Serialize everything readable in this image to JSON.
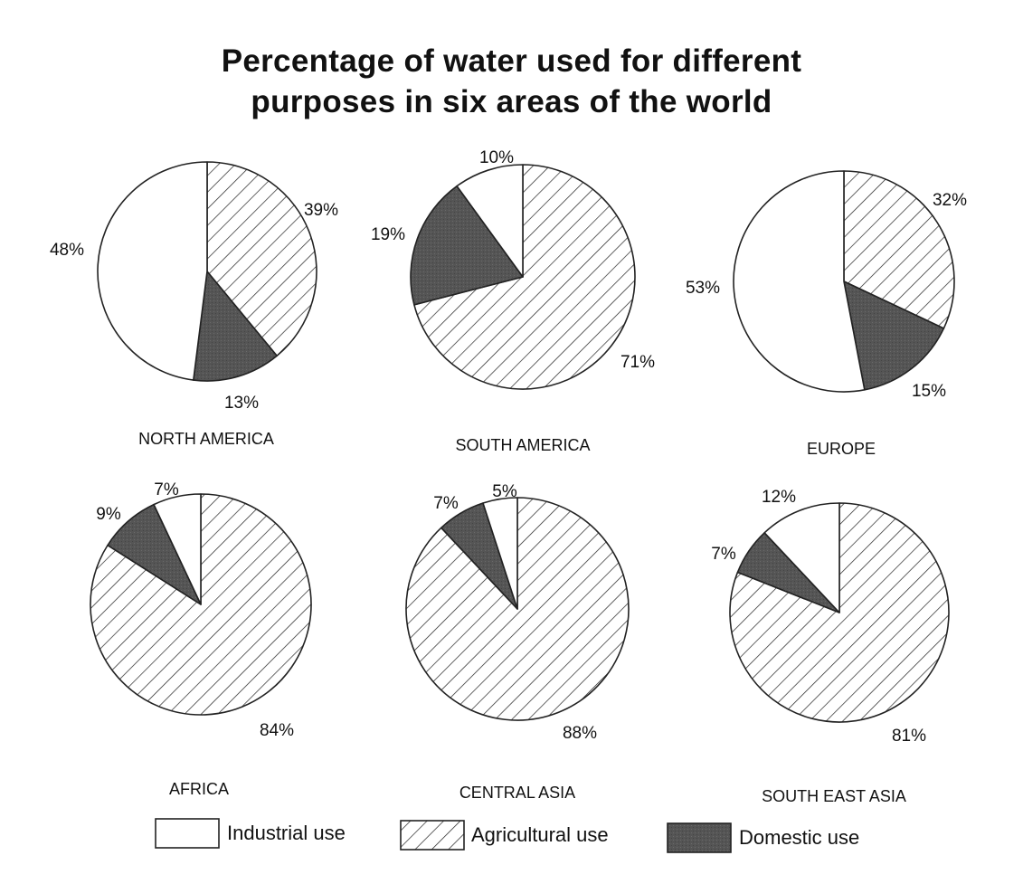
{
  "chart_title_line1": "Percentage of water used for different",
  "chart_title_line2": "purposes in six areas of the world",
  "chart_data": {
    "type": "pie",
    "title": "Percentage of water used for different purposes in six areas of the world",
    "categories": [
      "Industrial use",
      "Agricultural use",
      "Domestic use"
    ],
    "category_colors": [
      "#ffffff",
      "hatched",
      "#555555"
    ],
    "pies": [
      {
        "name": "NORTH AMERICA",
        "values": {
          "Industrial use": 48,
          "Agricultural use": 39,
          "Domestic use": 13
        },
        "labels": {
          "Industrial use": "48%",
          "Agricultural use": "39%",
          "Domestic use": "13%"
        }
      },
      {
        "name": "SOUTH AMERICA",
        "values": {
          "Industrial use": 10,
          "Agricultural use": 71,
          "Domestic use": 19
        },
        "labels": {
          "Industrial use": "10%",
          "Agricultural use": "71%",
          "Domestic use": "19%"
        }
      },
      {
        "name": "EUROPE",
        "values": {
          "Industrial use": 53,
          "Agricultural use": 32,
          "Domestic use": 15
        },
        "labels": {
          "Industrial use": "53%",
          "Agricultural use": "32%",
          "Domestic use": "15%"
        }
      },
      {
        "name": "AFRICA",
        "values": {
          "Industrial use": 7,
          "Agricultural use": 84,
          "Domestic use": 9
        },
        "labels": {
          "Industrial use": "7%",
          "Agricultural use": "84%",
          "Domestic use": "9%"
        }
      },
      {
        "name": "CENTRAL ASIA",
        "values": {
          "Industrial use": 5,
          "Agricultural use": 88,
          "Domestic use": 7
        },
        "labels": {
          "Industrial use": "5%",
          "Agricultural use": "88%",
          "Domestic use": "7%"
        }
      },
      {
        "name": "SOUTH EAST ASIA",
        "values": {
          "Industrial use": 12,
          "Agricultural use": 81,
          "Domestic use": 7
        },
        "labels": {
          "Industrial use": "12%",
          "Agricultural use": "81%",
          "Domestic use": "7%"
        }
      }
    ],
    "legend": {
      "placement": "bottom",
      "items": [
        {
          "label": "Industrial use",
          "fill": "white"
        },
        {
          "label": "Agricultural use",
          "fill": "hatched"
        },
        {
          "label": "Domestic use",
          "fill": "dark grey"
        }
      ]
    }
  }
}
